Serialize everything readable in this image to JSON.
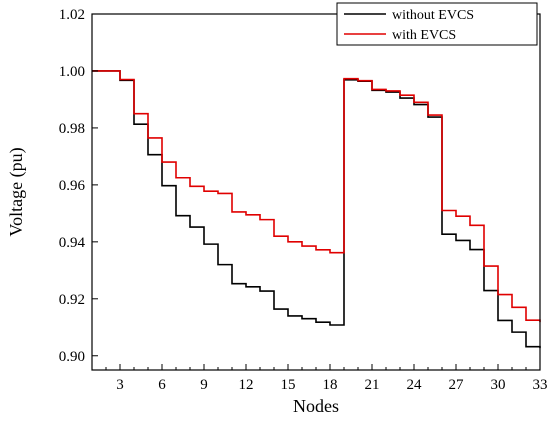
{
  "chart_data": {
    "type": "line",
    "step": true,
    "xlabel": "Nodes",
    "ylabel": "Voltage (pu)",
    "xlim": [
      1,
      33
    ],
    "ylim": [
      0.895,
      1.02
    ],
    "x_ticks": [
      3,
      6,
      9,
      12,
      15,
      18,
      21,
      24,
      27,
      30,
      33
    ],
    "y_ticks": [
      0.9,
      0.92,
      0.94,
      0.96,
      0.98,
      1.0,
      1.02
    ],
    "y_tick_labels": [
      "0.90",
      "0.92",
      "0.94",
      "0.96",
      "0.98",
      "1.00",
      "1.02"
    ],
    "grid": false,
    "legend_position": "top-right",
    "x": [
      1,
      2,
      3,
      4,
      5,
      6,
      7,
      8,
      9,
      10,
      11,
      12,
      13,
      14,
      15,
      16,
      17,
      18,
      19,
      20,
      21,
      22,
      23,
      24,
      25,
      26,
      27,
      28,
      29,
      30,
      31,
      32,
      33
    ],
    "series": [
      {
        "name": "without EVCS",
        "color": "#000000",
        "values": [
          1.0,
          1.0,
          0.9967,
          0.9813,
          0.9706,
          0.9597,
          0.9492,
          0.9452,
          0.9392,
          0.932,
          0.9253,
          0.9242,
          0.9227,
          0.9164,
          0.914,
          0.913,
          0.9118,
          0.9108,
          0.9969,
          0.9964,
          0.9932,
          0.9926,
          0.9905,
          0.9882,
          0.9838,
          0.9427,
          0.9405,
          0.9373,
          0.9229,
          0.9124,
          0.9083,
          0.9032,
          0.9027
        ]
      },
      {
        "name": "with EVCS",
        "color": "#e00000",
        "values": [
          1.0,
          1.0,
          0.997,
          0.985,
          0.9765,
          0.968,
          0.9625,
          0.9595,
          0.9578,
          0.957,
          0.9505,
          0.9495,
          0.9478,
          0.942,
          0.94,
          0.9385,
          0.9372,
          0.9362,
          0.9973,
          0.9966,
          0.9935,
          0.993,
          0.9915,
          0.989,
          0.9845,
          0.951,
          0.949,
          0.9458,
          0.9315,
          0.9215,
          0.917,
          0.9125,
          0.9118
        ]
      }
    ]
  }
}
